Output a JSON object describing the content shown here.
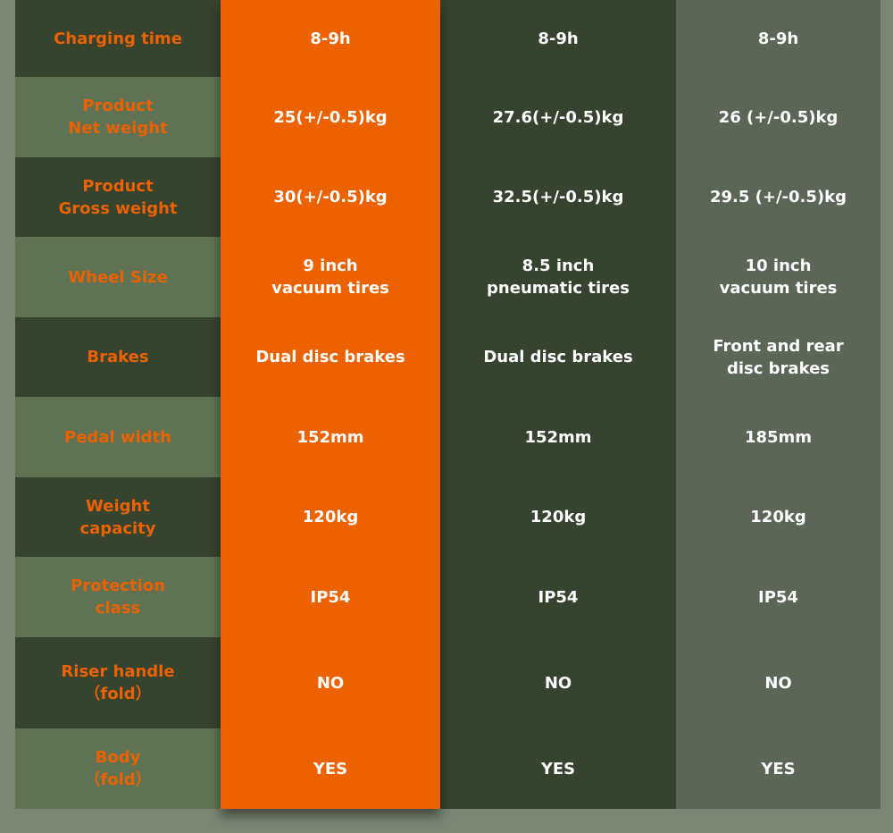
{
  "colors": {
    "background": "#7b8674",
    "accent": "#ec6100",
    "dark_row": "#36432f",
    "light_row": "#5f7354",
    "column_4": "#5b6656"
  },
  "rows": [
    {
      "label": "Charging time",
      "values": [
        "8-9h",
        "8-9h",
        "8-9h"
      ]
    },
    {
      "label": "Product\nNet weight",
      "values": [
        "25(+/-0.5)kg",
        "27.6(+/-0.5)kg",
        "26 (+/-0.5)kg"
      ]
    },
    {
      "label": "Product\nGross weight",
      "values": [
        "30(+/-0.5)kg",
        "32.5(+/-0.5)kg",
        "29.5 (+/-0.5)kg"
      ]
    },
    {
      "label": "Wheel Size",
      "values": [
        "9 inch\nvacuum tires",
        "8.5 inch\npneumatic tires",
        "10 inch\nvacuum tires"
      ]
    },
    {
      "label": "Brakes",
      "values": [
        "Dual disc brakes",
        "Dual disc brakes",
        "Front and rear\ndisc brakes"
      ]
    },
    {
      "label": "Pedal width",
      "values": [
        "152mm",
        "152mm",
        "185mm"
      ]
    },
    {
      "label": "Weight\ncapacity",
      "values": [
        "120kg",
        "120kg",
        "120kg"
      ]
    },
    {
      "label": "Protection\nclass",
      "values": [
        "IP54",
        "IP54",
        "IP54"
      ]
    },
    {
      "label": "Riser handle\n（fold）",
      "values": [
        "NO",
        "NO",
        "NO"
      ]
    },
    {
      "label": "Body\n（fold）",
      "values": [
        "YES",
        "YES",
        "YES"
      ]
    }
  ]
}
